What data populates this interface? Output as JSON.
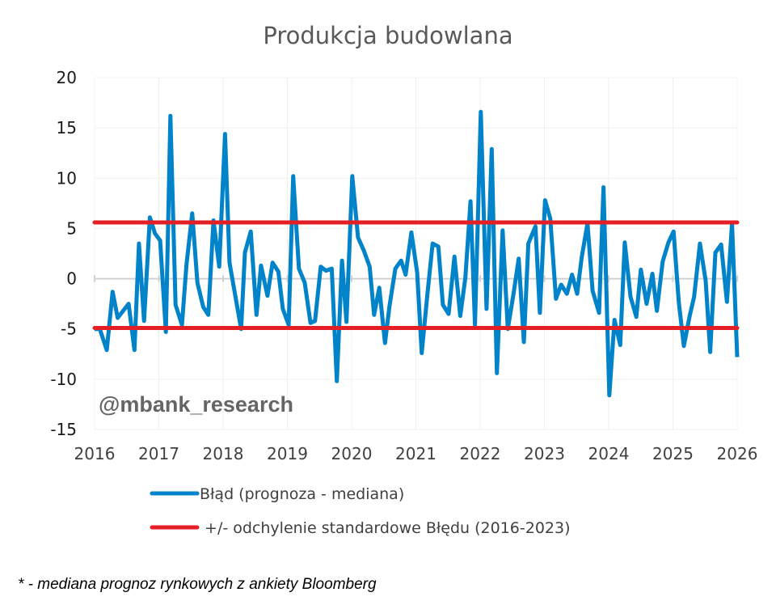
{
  "chart_data": {
    "type": "line",
    "title": "Produkcja budowlana",
    "xlim": [
      2016,
      2026
    ],
    "ylim": [
      -15,
      20
    ],
    "x_ticks": [
      "2016",
      "2017",
      "2018",
      "2019",
      "2020",
      "2021",
      "2022",
      "2023",
      "2024",
      "2025",
      "2026"
    ],
    "y_ticks": [
      "20",
      "15",
      "10",
      "5",
      "0",
      "-5",
      "-10",
      "-15"
    ],
    "grid": true,
    "legend_position": "bottom",
    "series": [
      {
        "name": "Błąd (prognoza - mediana)",
        "color": "#0083C9",
        "x": [
          2016.0,
          2016.08,
          2016.19,
          2016.28,
          2016.36,
          2016.53,
          2016.62,
          2016.69,
          2016.77,
          2016.86,
          2016.94,
          2017.02,
          2017.11,
          2017.18,
          2017.26,
          2017.36,
          2017.43,
          2017.52,
          2017.6,
          2017.69,
          2017.77,
          2017.85,
          2017.94,
          2018.03,
          2018.1,
          2018.28,
          2018.34,
          2018.43,
          2018.52,
          2018.59,
          2018.69,
          2018.77,
          2018.86,
          2018.93,
          2019.02,
          2019.09,
          2019.18,
          2019.27,
          2019.36,
          2019.43,
          2019.52,
          2019.6,
          2019.69,
          2019.77,
          2019.85,
          2019.92,
          2020.01,
          2020.1,
          2020.19,
          2020.28,
          2020.35,
          2020.43,
          2020.52,
          2020.59,
          2020.68,
          2020.77,
          2020.84,
          2020.93,
          2021.02,
          2021.09,
          2021.18,
          2021.26,
          2021.35,
          2021.42,
          2021.51,
          2021.6,
          2021.69,
          2021.77,
          2021.85,
          2021.92,
          2022.01,
          2022.1,
          2022.18,
          2022.26,
          2022.35,
          2022.43,
          2022.52,
          2022.6,
          2022.68,
          2022.75,
          2022.86,
          2022.93,
          2023.01,
          2023.09,
          2023.18,
          2023.26,
          2023.35,
          2023.43,
          2023.51,
          2023.58,
          2023.67,
          2023.75,
          2023.85,
          2023.92,
          2024.01,
          2024.09,
          2024.18,
          2024.25,
          2024.34,
          2024.43,
          2024.5,
          2024.59,
          2024.68,
          2024.75,
          2024.84,
          2024.93,
          2025.01,
          2025.09,
          2025.17,
          2025.26,
          2025.33,
          2025.42,
          2025.51,
          2025.58,
          2025.66,
          2025.75,
          2025.84,
          2025.92,
          2026.0
        ],
        "values": [
          -5.0,
          -5.0,
          -7.1,
          -1.3,
          -3.9,
          -2.5,
          -7.1,
          3.5,
          -4.2,
          6.1,
          4.5,
          3.8,
          -5.3,
          16.2,
          -2.6,
          -4.6,
          1.4,
          6.5,
          -0.4,
          -2.8,
          -3.6,
          5.8,
          1.2,
          14.4,
          1.6,
          -5.0,
          2.6,
          4.7,
          -3.6,
          1.3,
          -1.7,
          1.6,
          0.7,
          -3.0,
          -4.6,
          10.2,
          1.0,
          -0.4,
          -4.4,
          -4.2,
          1.2,
          0.8,
          1.0,
          -10.2,
          1.8,
          -4.3,
          10.2,
          4.1,
          2.8,
          1.2,
          -3.6,
          -0.9,
          -6.4,
          -2.7,
          1.0,
          1.8,
          0.4,
          4.6,
          0.6,
          -7.4,
          -1.5,
          3.5,
          3.2,
          -2.6,
          -3.5,
          2.2,
          -3.7,
          0.1,
          7.7,
          -4.6,
          16.6,
          -3.0,
          12.9,
          -9.4,
          4.8,
          -5.0,
          -1.5,
          2.0,
          -6.3,
          3.5,
          5.2,
          -3.4,
          7.8,
          6.0,
          -2.0,
          -0.6,
          -1.5,
          0.4,
          -1.5,
          2.1,
          5.5,
          -1.2,
          -3.4,
          9.1,
          -11.6,
          -4.1,
          -6.6,
          3.6,
          -1.8,
          -3.8,
          0.9,
          -2.5,
          0.5,
          -3.2,
          1.7,
          3.6,
          4.7,
          -2.3,
          -6.7,
          -3.7,
          -1.8,
          3.5,
          -0.2,
          -7.3,
          2.6,
          3.4,
          -2.3,
          5.5,
          -7.8
        ]
      },
      {
        "name": " +/- odchylenie standardowe Błędu (2016-2023)",
        "color": "#E31E24",
        "upper": 5.6,
        "lower": -4.9
      }
    ],
    "watermark": "@mbank_research",
    "footnote": "* - mediana prognoz rynkowych z ankiety Bloomberg"
  }
}
